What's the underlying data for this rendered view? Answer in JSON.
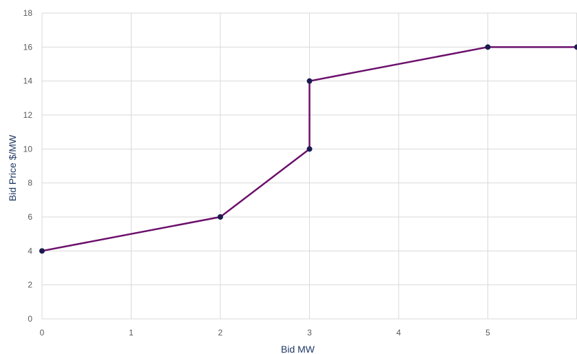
{
  "chart_data": {
    "type": "line",
    "title": "",
    "xlabel": "Bid MW",
    "ylabel": "Bid Price $/MW",
    "xlim": [
      0,
      6
    ],
    "ylim": [
      0,
      18
    ],
    "x_ticks": [
      0,
      1,
      2,
      3,
      4,
      5
    ],
    "y_ticks": [
      0,
      2,
      4,
      6,
      8,
      10,
      12,
      14,
      16,
      18
    ],
    "grid": true,
    "legend": "none",
    "colors": {
      "line": "#6b0f6b",
      "marker": "#1b1b4f",
      "grid": "#d9d9d9",
      "axis_title": "#1f3864"
    },
    "series": [
      {
        "points": [
          {
            "x": 0,
            "y": 4
          },
          {
            "x": 2,
            "y": 6
          },
          {
            "x": 3,
            "y": 10
          },
          {
            "x": 3,
            "y": 14
          },
          {
            "x": 5,
            "y": 16
          },
          {
            "x": 6,
            "y": 16
          }
        ]
      }
    ]
  }
}
